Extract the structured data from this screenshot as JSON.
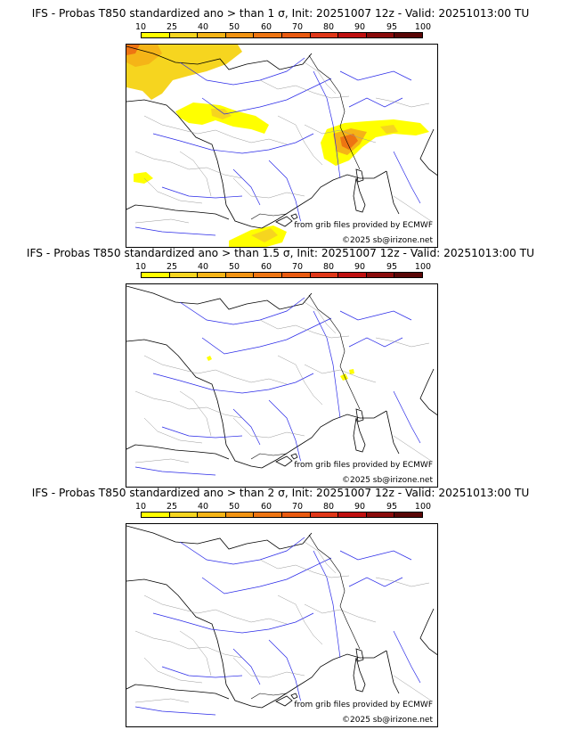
{
  "colorbar": {
    "labels": [
      "10",
      "25",
      "40",
      "50",
      "60",
      "70",
      "80",
      "90",
      "95",
      "100"
    ],
    "colors": [
      "#ffff00",
      "#f6d51f",
      "#f5b417",
      "#f19312",
      "#ee7512",
      "#e95a10",
      "#e03718",
      "#c01010",
      "#8b0b0b",
      "#5a0606"
    ]
  },
  "panels": [
    {
      "title": "IFS - Probas T850  standardized ano > than 1 σ, Init: 20251007 12z - Valid: 20251013:00 TU",
      "source_credit": "from grib files provided by ECMWF",
      "copyright": "©2025 sb@irizone.net"
    },
    {
      "title": "IFS - Probas T850  standardized ano > than 1.5 σ, Init: 20251007 12z - Valid: 20251013:00 TU",
      "source_credit": "from grib files provided by ECMWF",
      "copyright": "©2025 sb@irizone.net"
    },
    {
      "title": "IFS - Probas T850  standardized ano > than 2 σ, Init: 20251007 12z - Valid: 20251013:00 TU",
      "source_credit": "from grib files provided by ECMWF",
      "copyright": "©2025 sb@irizone.net"
    }
  ]
}
